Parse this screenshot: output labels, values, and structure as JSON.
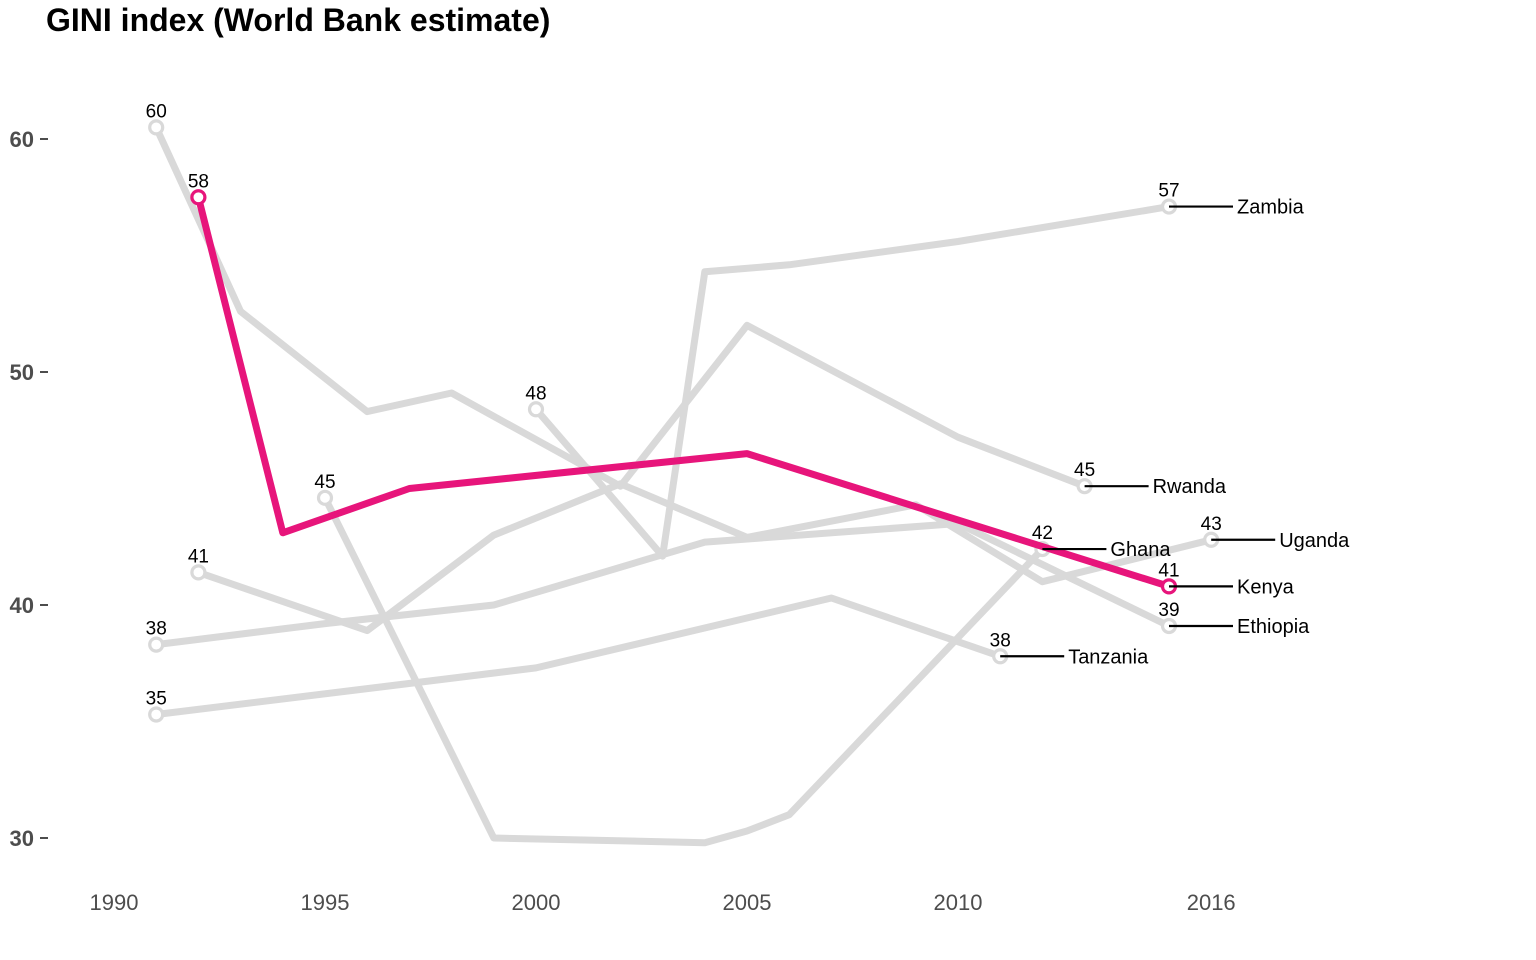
{
  "chart_data": {
    "type": "line",
    "title": "GINI index (World Bank estimate)",
    "xlabel": "",
    "ylabel": "",
    "xlim": [
      1990,
      2016
    ],
    "ylim": [
      30,
      60
    ],
    "xticks": [
      1990,
      1995,
      2000,
      2005,
      2010,
      2016
    ],
    "yticks": [
      30,
      40,
      50,
      60
    ],
    "colors": {
      "highlight": "#e7157b",
      "muted": "#d9d9d9",
      "leader": "#000000"
    },
    "series": [
      {
        "name": "Zambia",
        "highlight": false,
        "x": [
          2000,
          2003,
          2004,
          2006,
          2010,
          2015
        ],
        "y": [
          48.4,
          42.1,
          54.3,
          54.6,
          55.6,
          57.1
        ],
        "start_label": "48",
        "end_label": "57"
      },
      {
        "name": "Rwanda",
        "highlight": false,
        "x": [
          1991,
          1993,
          1996,
          1998,
          2002,
          2005,
          2010,
          2013
        ],
        "y": [
          60.5,
          52.6,
          48.3,
          49.1,
          45.1,
          52.0,
          47.2,
          45.1
        ],
        "start_label": "60",
        "end_label": "45"
      },
      {
        "name": "Ghana",
        "highlight": false,
        "x": [
          1995,
          1999,
          2004,
          2005,
          2006,
          2012
        ],
        "y": [
          44.6,
          30.0,
          29.8,
          30.3,
          31.0,
          42.4
        ],
        "start_label": "45",
        "end_label": "42"
      },
      {
        "name": "Uganda",
        "highlight": false,
        "x": [
          1992,
          1996,
          1999,
          2002,
          2005,
          2009,
          2012,
          2016
        ],
        "y": [
          41.4,
          38.9,
          43.0,
          45.2,
          42.9,
          44.3,
          41.0,
          42.8
        ],
        "start_label": "41",
        "end_label": "43"
      },
      {
        "name": "Kenya",
        "highlight": true,
        "x": [
          1992,
          1994,
          1997,
          2005,
          2015
        ],
        "y": [
          57.5,
          43.1,
          45.0,
          46.5,
          40.8
        ],
        "start_label": "58",
        "end_label": "41"
      },
      {
        "name": "Tanzania",
        "highlight": false,
        "x": [
          1991,
          2000,
          2007,
          2011
        ],
        "y": [
          35.3,
          37.3,
          40.3,
          37.8
        ],
        "start_label": "35",
        "end_label": "38"
      },
      {
        "name": "Ethiopia",
        "highlight": false,
        "x": [
          1991,
          1995,
          1999,
          2004,
          2010,
          2015
        ],
        "y": [
          38.3,
          39.2,
          40.0,
          42.7,
          43.5,
          39.1
        ],
        "start_label": "38",
        "end_label": "39"
      }
    ]
  }
}
